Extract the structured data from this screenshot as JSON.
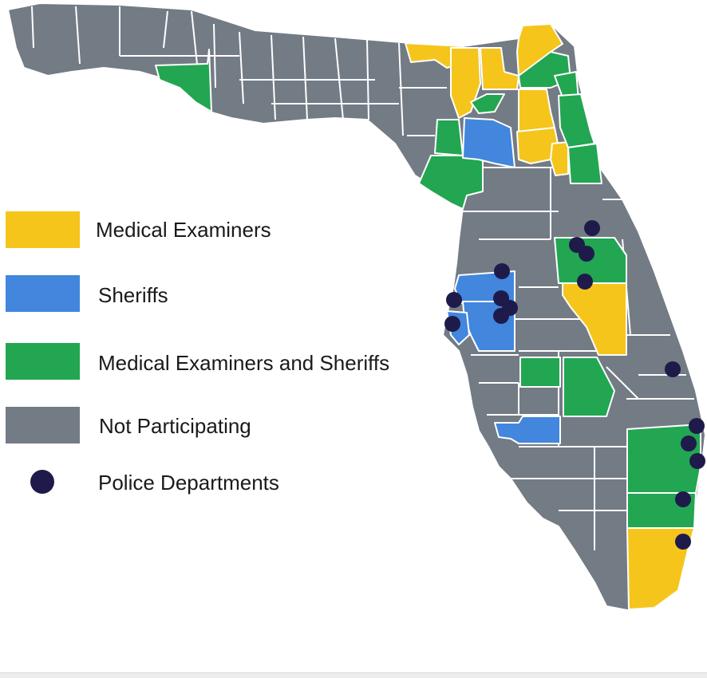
{
  "colors": {
    "medical_examiners": "#f6c51b",
    "sheriffs": "#4286dd",
    "both": "#22a651",
    "not_participating": "#737b85",
    "police": "#1e1b4b",
    "border": "#ffffff"
  },
  "legend": [
    {
      "key": "medical_examiners",
      "label": "Medical Examiners"
    },
    {
      "key": "sheriffs",
      "label": "Sheriffs"
    },
    {
      "key": "both",
      "label": "Medical Examiners and Sheriffs"
    },
    {
      "key": "not_participating",
      "label": "Not Participating"
    },
    {
      "key": "police",
      "label": "Police Departments"
    }
  ]
}
